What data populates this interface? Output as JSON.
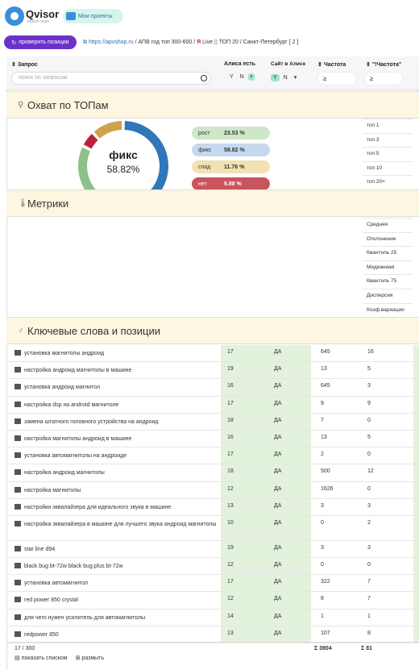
{
  "header": {
    "logo_text": "Qvisor",
    "logo_sub": "search tools",
    "projects_label": "Мои проекты",
    "check_button": "проверить позиции",
    "site_link": "https://apvshop.ru",
    "project_info": "/ АПВ год топ 300-600 /",
    "live_label": "Live",
    "region_info": "ТОП 20 / Санкт-Петербург [ 2 ]"
  },
  "columns": {
    "query": "Запрос",
    "alice": "Алиса есть",
    "site_in_alice": "Сайт в Алисе",
    "freq": "Частота",
    "qfreq": "\"!Частота\""
  },
  "search": {
    "placeholder": "поиск по запросам"
  },
  "filters": {
    "y": "Y",
    "n": "N",
    "gte": "≥"
  },
  "coverage": {
    "title": "Охват по ТОПам",
    "center_label": "фикс",
    "center_value": "58.82%",
    "legend": [
      {
        "label": "рост",
        "value": "23.53 %",
        "color": "#8fc08a"
      },
      {
        "label": "фикс",
        "value": "58.82 %",
        "color": "#2f77b8"
      },
      {
        "label": "спад",
        "value": "11.76 %",
        "color": "#d0a24a"
      },
      {
        "label": "нет",
        "value": "5.88 %",
        "color": "#b8243a"
      }
    ],
    "tops": [
      "топ 1",
      "топ 3",
      "топ 5",
      "топ 10",
      "топ 20+"
    ]
  },
  "metrics": {
    "title": "Метрики",
    "list": [
      "Средняя",
      "Отклонение",
      "Квантиль 25",
      "Медианная",
      "Квантиль 75",
      "Дисперсия",
      "Коэф.вариации"
    ]
  },
  "keywords": {
    "title": "Ключевые слова и позиции",
    "rows": [
      {
        "q": "установка магнитолы андроид",
        "a": "17",
        "s": "ДА",
        "f": "645",
        "qf": "16"
      },
      {
        "q": "настройка андроид магнитолы в машине",
        "a": "19",
        "s": "ДА",
        "f": "13",
        "qf": "5"
      },
      {
        "q": "установка андроид магнитол",
        "a": "16",
        "s": "ДА",
        "f": "645",
        "qf": "3"
      },
      {
        "q": "настройка dsp на android магнитоле",
        "a": "17",
        "s": "ДА",
        "f": "9",
        "qf": "9"
      },
      {
        "q": "замена штатного головного устройства на андроид",
        "a": "18",
        "s": "ДА",
        "f": "7",
        "qf": "0"
      },
      {
        "q": "настройка магнитолы андроид в машине",
        "a": "16",
        "s": "ДА",
        "f": "13",
        "qf": "5"
      },
      {
        "q": "установка автомагнитолы на андроиде",
        "a": "17",
        "s": "ДА",
        "f": "2",
        "qf": "0"
      },
      {
        "q": "настройка андроид магнитолы",
        "a": "18",
        "s": "ДА",
        "f": "500",
        "qf": "12"
      },
      {
        "q": "настройка магнитолы",
        "a": "12",
        "s": "ДА",
        "f": "1626",
        "qf": "0"
      },
      {
        "q": "настройки эквалайзера для идеального звука в машине",
        "a": "13",
        "s": "ДА",
        "f": "3",
        "qf": "3"
      },
      {
        "q": "настройка эквалайзера в машине для лучшего звука андроид магнитолы",
        "a": "10",
        "s": "ДА",
        "f": "0",
        "qf": "2"
      },
      {
        "q": "star line d94",
        "a": "19",
        "s": "ДА",
        "f": "3",
        "qf": "3"
      },
      {
        "q": "black bug bt-72w black bug plus bt-72w",
        "a": "12",
        "s": "ДА",
        "f": "0",
        "qf": "0"
      },
      {
        "q": "установка автомагнитол",
        "a": "17",
        "s": "ДА",
        "f": "322",
        "qf": "7"
      },
      {
        "q": "red power 850 crystal",
        "a": "12",
        "s": "ДА",
        "f": "8",
        "qf": "7"
      },
      {
        "q": "для чего нужен усилитель для автомагнитолы",
        "a": "14",
        "s": "ДА",
        "f": "1",
        "qf": "1"
      },
      {
        "q": "redpower 850",
        "a": "13",
        "s": "ДА",
        "f": "107",
        "qf": "8"
      }
    ]
  },
  "footer": {
    "count": "17 / 300",
    "show_list": "показать списком",
    "spread": "размыть",
    "sum_freq": "Σ 3904",
    "sum_qfreq": "Σ 81"
  }
}
